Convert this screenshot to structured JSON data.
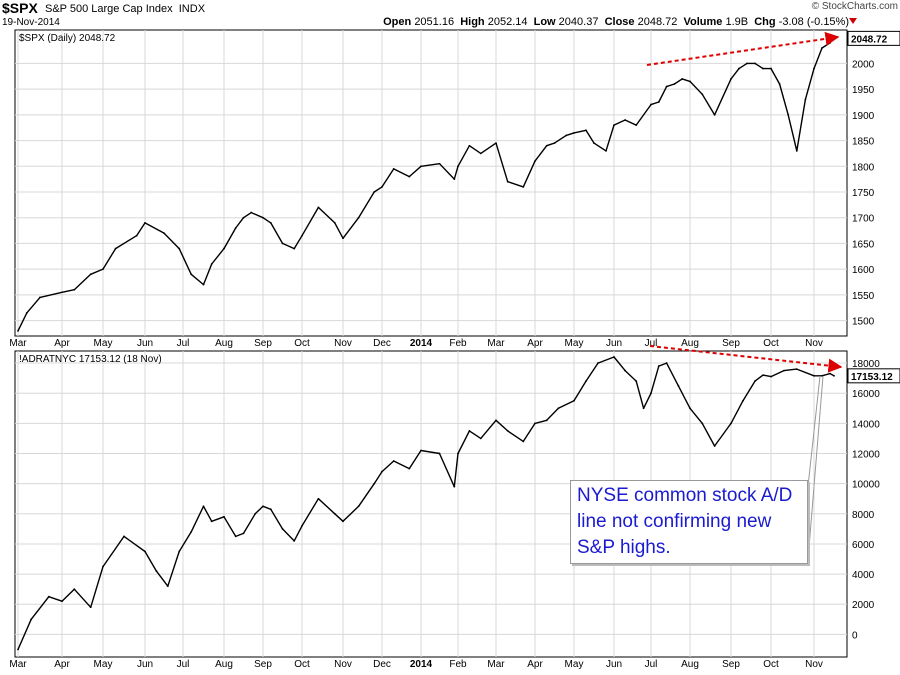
{
  "header": {
    "symbol": "$SPX",
    "name": "S&P 500 Large Cap Index",
    "exchange": "INDX",
    "date": "19-Nov-2014",
    "brand": "© StockCharts.com",
    "open_label": "Open",
    "open": "2051.16",
    "high_label": "High",
    "high": "2052.14",
    "low_label": "Low",
    "low": "2040.37",
    "close_label": "Close",
    "close": "2048.72",
    "volume_label": "Volume",
    "volume": "1.9B",
    "chg_label": "Chg",
    "chg": "-3.08 (-0.15%)"
  },
  "annotation": "NYSE common stock A/D line not confirming new S&P highs.",
  "colors": {
    "price": "#000000",
    "arrow": "#dd0000",
    "grid": "#d8d8d8",
    "note_text": "#1a1ad0"
  },
  "chart_data": [
    {
      "type": "line",
      "legend": "$SPX (Daily) 2048.72",
      "last_value_label": "2048.72",
      "last_value": 2048.72,
      "ylim": [
        1470,
        2065
      ],
      "y_ticks": [
        1500,
        1550,
        1600,
        1650,
        1700,
        1750,
        1800,
        1850,
        1900,
        1950,
        2000
      ],
      "x_labels": [
        "Mar",
        "Apr",
        "May",
        "Jun",
        "Jul",
        "Aug",
        "Sep",
        "Oct",
        "Nov",
        "Dec",
        "2014",
        "Feb",
        "Mar",
        "Apr",
        "May",
        "Jun",
        "Jul",
        "Aug",
        "Sep",
        "Oct",
        "Nov"
      ],
      "grid": true,
      "x": [
        0,
        0.2,
        0.5,
        1,
        1.3,
        1.7,
        2,
        2.3,
        2.8,
        3,
        3.5,
        3.9,
        4.2,
        4.5,
        4.7,
        5,
        5.3,
        5.5,
        5.7,
        6,
        6.2,
        6.5,
        6.8,
        7,
        7.4,
        7.8,
        8,
        8.4,
        8.8,
        9,
        9.3,
        9.7,
        10,
        10.5,
        10.9,
        11,
        11.3,
        11.6,
        12,
        12.3,
        12.7,
        13,
        13.3,
        13.5,
        13.8,
        14,
        14.3,
        14.5,
        14.8,
        15,
        15.3,
        15.6,
        16,
        16.2,
        16.4,
        16.6,
        16.8,
        17,
        17.3,
        17.6,
        18,
        18.2,
        18.4,
        18.6,
        18.8,
        19,
        19.2,
        19.4,
        19.6,
        19.8,
        20,
        20.2,
        20.4,
        20.5
      ],
      "y": [
        1480,
        1515,
        1545,
        1555,
        1560,
        1590,
        1600,
        1640,
        1665,
        1690,
        1670,
        1640,
        1590,
        1570,
        1610,
        1640,
        1680,
        1700,
        1710,
        1700,
        1690,
        1650,
        1640,
        1665,
        1720,
        1690,
        1660,
        1700,
        1750,
        1760,
        1795,
        1780,
        1800,
        1805,
        1775,
        1800,
        1840,
        1825,
        1845,
        1770,
        1760,
        1810,
        1840,
        1845,
        1860,
        1865,
        1870,
        1845,
        1830,
        1880,
        1890,
        1880,
        1920,
        1925,
        1955,
        1960,
        1970,
        1965,
        1940,
        1900,
        1970,
        1990,
        2000,
        2000,
        1990,
        1990,
        1960,
        1900,
        1830,
        1930,
        1990,
        2030,
        2040,
        2048.72
      ]
    },
    {
      "type": "line",
      "legend": "!ADRATNYC 17153.12 (18 Nov)",
      "last_value_label": "17153.12",
      "last_value": 17153.12,
      "ylim": [
        -1500,
        18800
      ],
      "y_ticks": [
        0,
        2000,
        4000,
        6000,
        8000,
        10000,
        12000,
        14000,
        16000,
        18000
      ],
      "x_labels": [
        "Mar",
        "Apr",
        "May",
        "Jun",
        "Jul",
        "Aug",
        "Sep",
        "Oct",
        "Nov",
        "Dec",
        "2014",
        "Feb",
        "Mar",
        "Apr",
        "May",
        "Jun",
        "Jul",
        "Aug",
        "Sep",
        "Oct",
        "Nov"
      ],
      "grid": true,
      "x": [
        0,
        0.3,
        0.7,
        1,
        1.3,
        1.7,
        2,
        2.5,
        3,
        3.3,
        3.6,
        3.9,
        4.2,
        4.5,
        4.7,
        5,
        5.3,
        5.5,
        5.8,
        6,
        6.2,
        6.5,
        6.8,
        7,
        7.4,
        7.8,
        8,
        8.4,
        8.8,
        9,
        9.3,
        9.7,
        10,
        10.5,
        10.9,
        11,
        11.3,
        11.6,
        12,
        12.3,
        12.7,
        13,
        13.3,
        13.6,
        14,
        14.3,
        14.6,
        15,
        15.3,
        15.6,
        15.8,
        16,
        16.2,
        16.4,
        16.7,
        17,
        17.3,
        17.6,
        18,
        18.3,
        18.6,
        18.8,
        19,
        19.3,
        19.6,
        20,
        20.2,
        20.4,
        20.5
      ],
      "y": [
        -1000,
        1000,
        2500,
        2200,
        3000,
        1800,
        4500,
        6500,
        5500,
        4200,
        3200,
        5500,
        6800,
        8500,
        7500,
        7800,
        6500,
        6700,
        8000,
        8500,
        8300,
        7000,
        6200,
        7200,
        9000,
        8000,
        7500,
        8500,
        10000,
        10800,
        11500,
        11000,
        12200,
        12000,
        9800,
        12000,
        13500,
        13000,
        14200,
        13500,
        12800,
        14000,
        14200,
        15000,
        15500,
        16800,
        18000,
        18400,
        17500,
        16800,
        15000,
        16000,
        17800,
        18000,
        16500,
        15000,
        14000,
        12500,
        14000,
        15500,
        16800,
        17200,
        17100,
        17500,
        17600,
        17153,
        17153,
        17300,
        17153.12
      ]
    }
  ]
}
